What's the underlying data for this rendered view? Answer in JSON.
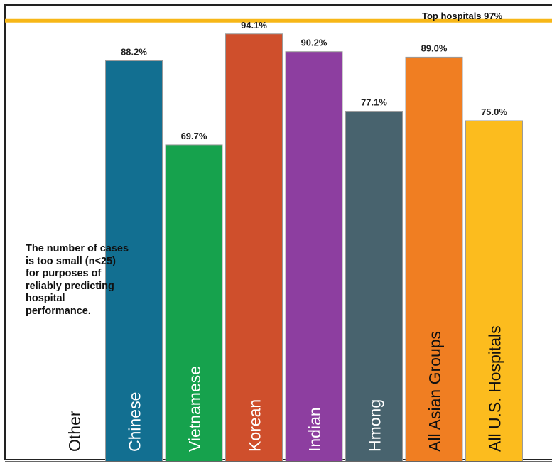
{
  "chart_data": {
    "type": "bar",
    "title": "",
    "xlabel": "",
    "ylabel": "",
    "ylim": [
      0,
      100
    ],
    "grid": false,
    "legend": "none",
    "categories": [
      "Other",
      "Chinese",
      "Vietnamese",
      "Korean",
      "Indian",
      "Hmong",
      "All Asian Groups",
      "All U.S. Hospitals"
    ],
    "values": [
      null,
      88.2,
      69.7,
      94.1,
      90.2,
      77.1,
      89.0,
      75.0
    ],
    "value_labels": [
      "",
      "88.2%",
      "69.7%",
      "94.1%",
      "90.2%",
      "77.1%",
      "89.0%",
      "75.0%"
    ],
    "colors": [
      "#ffffff",
      "#126f91",
      "#16a24d",
      "#cf4f2c",
      "#8d3ea0",
      "#48636e",
      "#f07e22",
      "#fcbc1e"
    ],
    "label_colors": [
      "#111111",
      "#ffffff",
      "#ffffff",
      "#ffffff",
      "#ffffff",
      "#ffffff",
      "#111111",
      "#111111"
    ],
    "reference_line": {
      "value": 97,
      "label": "Top hospitals 97%",
      "color": "#f7b718"
    },
    "note": "The number of cases is too small (n<25) for purposes of reliably predicting hospital performance."
  }
}
